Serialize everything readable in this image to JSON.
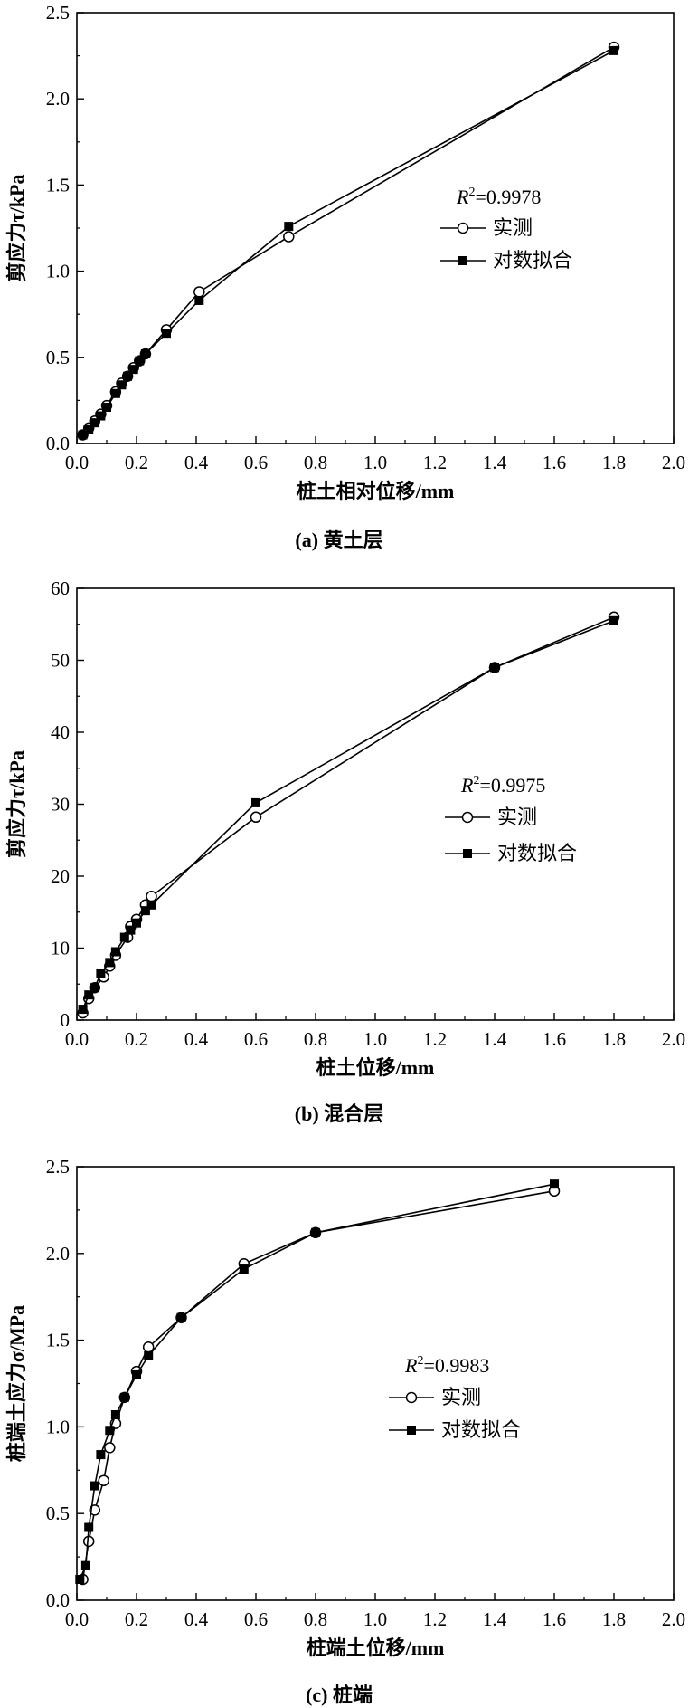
{
  "chart_data": [
    {
      "type": "line",
      "caption": "(a) 黄土层",
      "xlabel": "桩土相对位移/mm",
      "ylabel": "剪应力τ/kPa",
      "xlim": [
        0,
        2.0
      ],
      "ylim": [
        0,
        2.5
      ],
      "xticks": [
        "0.0",
        "0.2",
        "0.4",
        "0.6",
        "0.8",
        "1.0",
        "1.2",
        "1.4",
        "1.6",
        "1.8",
        "2.0"
      ],
      "yticks": [
        "0.0",
        "0.5",
        "1.0",
        "1.5",
        "2.0",
        "2.5"
      ],
      "annotation": {
        "r_label": "R",
        "r_sup": "2",
        "r_value": "=0.9978"
      },
      "legend": {
        "position": "center-right"
      },
      "series": [
        {
          "name": "实测",
          "marker": "open-circle",
          "x": [
            0.02,
            0.04,
            0.06,
            0.08,
            0.1,
            0.13,
            0.15,
            0.17,
            0.19,
            0.21,
            0.23,
            0.3,
            0.41,
            0.71,
            1.8
          ],
          "y": [
            0.05,
            0.09,
            0.13,
            0.17,
            0.22,
            0.3,
            0.35,
            0.39,
            0.44,
            0.48,
            0.52,
            0.66,
            0.88,
            1.2,
            2.3
          ]
        },
        {
          "name": "对数拟合",
          "marker": "filled-square",
          "x": [
            0.02,
            0.04,
            0.06,
            0.08,
            0.1,
            0.13,
            0.15,
            0.17,
            0.19,
            0.21,
            0.23,
            0.3,
            0.41,
            0.71,
            1.8
          ],
          "y": [
            0.05,
            0.08,
            0.12,
            0.16,
            0.21,
            0.29,
            0.34,
            0.39,
            0.43,
            0.48,
            0.52,
            0.64,
            0.83,
            1.26,
            2.28
          ]
        }
      ]
    },
    {
      "type": "line",
      "caption": "(b) 混合层",
      "xlabel": "桩土位移/mm",
      "ylabel": "剪应力τ/kPa",
      "xlim": [
        0,
        2.0
      ],
      "ylim": [
        0,
        60
      ],
      "xticks": [
        "0.0",
        "0.2",
        "0.4",
        "0.6",
        "0.8",
        "1.0",
        "1.2",
        "1.4",
        "1.6",
        "1.8",
        "2.0"
      ],
      "yticks": [
        "0",
        "10",
        "20",
        "30",
        "40",
        "50",
        "60"
      ],
      "annotation": {
        "r_label": "R",
        "r_sup": "2",
        "r_value": "=0.9975"
      },
      "legend": {
        "position": "center-right"
      },
      "series": [
        {
          "name": "实测",
          "marker": "open-circle",
          "x": [
            0.02,
            0.04,
            0.06,
            0.09,
            0.11,
            0.13,
            0.17,
            0.18,
            0.2,
            0.23,
            0.25,
            0.6,
            1.4,
            1.8
          ],
          "y": [
            1.0,
            3.0,
            4.5,
            6.0,
            7.5,
            9.0,
            11.5,
            13.0,
            14.0,
            16.0,
            17.2,
            28.2,
            49.0,
            56.0
          ]
        },
        {
          "name": "对数拟合",
          "marker": "filled-square",
          "x": [
            0.02,
            0.04,
            0.06,
            0.08,
            0.11,
            0.13,
            0.16,
            0.18,
            0.2,
            0.23,
            0.25,
            0.6,
            1.4,
            1.8
          ],
          "y": [
            1.5,
            3.5,
            4.5,
            6.5,
            8.0,
            9.5,
            11.5,
            12.5,
            13.5,
            15.2,
            16.0,
            30.2,
            49.0,
            55.5
          ]
        }
      ]
    },
    {
      "type": "line",
      "caption": "(c) 桩端",
      "xlabel": "桩端土位移/mm",
      "ylabel": "桩端土应力σ/MPa",
      "xlim": [
        0,
        2.0
      ],
      "ylim": [
        0,
        2.5
      ],
      "xticks": [
        "0.0",
        "0.2",
        "0.4",
        "0.6",
        "0.8",
        "1.0",
        "1.2",
        "1.4",
        "1.6",
        "1.8",
        "2.0"
      ],
      "yticks": [
        "0.0",
        "0.5",
        "1.0",
        "1.5",
        "2.0",
        "2.5"
      ],
      "annotation": {
        "r_label": "R",
        "r_sup": "2",
        "r_value": "=0.9983"
      },
      "legend": {
        "position": "center-right"
      },
      "series": [
        {
          "name": "实测",
          "marker": "open-circle",
          "x": [
            0.02,
            0.04,
            0.06,
            0.09,
            0.11,
            0.13,
            0.16,
            0.2,
            0.24,
            0.35,
            0.56,
            0.8,
            1.6
          ],
          "y": [
            0.12,
            0.34,
            0.52,
            0.69,
            0.88,
            1.02,
            1.17,
            1.32,
            1.46,
            1.63,
            1.94,
            2.12,
            2.36
          ]
        },
        {
          "name": "对数拟合",
          "marker": "filled-square",
          "x": [
            0.01,
            0.03,
            0.04,
            0.06,
            0.08,
            0.11,
            0.13,
            0.16,
            0.2,
            0.24,
            0.35,
            0.56,
            0.8,
            1.6
          ],
          "y": [
            0.12,
            0.2,
            0.42,
            0.66,
            0.84,
            0.98,
            1.07,
            1.17,
            1.3,
            1.41,
            1.63,
            1.91,
            2.12,
            2.4
          ]
        }
      ]
    }
  ]
}
